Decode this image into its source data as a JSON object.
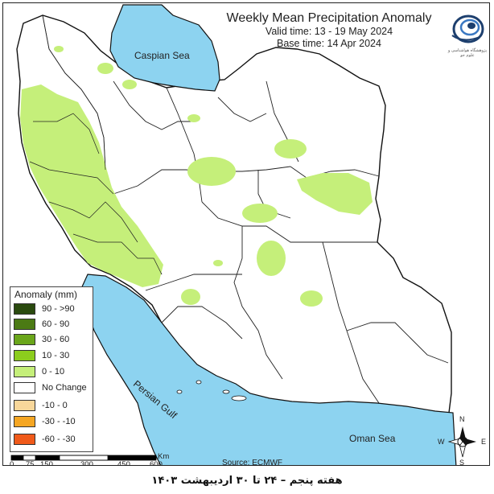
{
  "header": {
    "title": "Weekly Mean Precipitation Anomaly",
    "valid_time": "Valid time: 13 - 19 May 2024",
    "base_time": "Base time: 14 Apr 2024"
  },
  "logo": {
    "text": "پژوهشگاه هواشناسی و علوم جو",
    "icon": "swirl-logo-icon"
  },
  "labels": {
    "caspian": "Caspian Sea",
    "persian_gulf": "Persian Gulf",
    "oman": "Oman Sea"
  },
  "legend": {
    "title": "Anomaly (mm)",
    "items": [
      {
        "label": "90 - >90",
        "color": "#2a4a0f"
      },
      {
        "label": "60 - 90",
        "color": "#4b7a14"
      },
      {
        "label": "30 - 60",
        "color": "#6aa61a"
      },
      {
        "label": "10 - 30",
        "color": "#8ccd1d"
      },
      {
        "label": "0 - 10",
        "color": "#c5ef7a"
      },
      {
        "label": "No Change",
        "color": "#ffffff"
      },
      {
        "label": "-10 - 0",
        "color": "#f8d79a"
      },
      {
        "label": "-30 - -10",
        "color": "#f5a623"
      },
      {
        "label": "-60 - -30",
        "color": "#f05a1a"
      }
    ]
  },
  "scale": {
    "ticks": [
      "0",
      "75",
      "150",
      "300",
      "450",
      "600"
    ],
    "unit": "Km"
  },
  "compass": {
    "n": "N",
    "e": "E",
    "s": "S",
    "w": "W"
  },
  "source": "Source: ECMWF",
  "footer": "هفته پنجم – ۲۴ تا ۳۰ اردیبهشت ۱۴۰۳",
  "colors": {
    "water": "#8dd3f0",
    "anomaly_0_10": "#c5ef7a",
    "land": "#ffffff"
  }
}
